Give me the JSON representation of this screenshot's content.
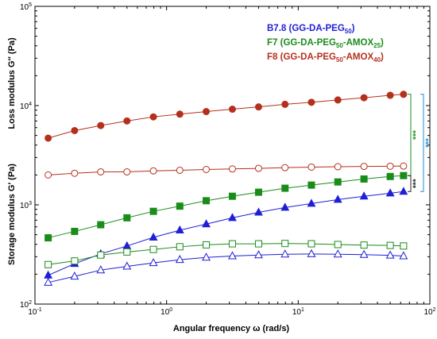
{
  "chart_data": {
    "type": "scatter",
    "title": "",
    "xlabel": "Angular frequency  ω  (rad/s)",
    "ylabel_top": "Loss modulus  G″  (Pa)",
    "ylabel_bottom": "Storage modulus  G′  (Pa)",
    "x_scale": "log",
    "y_scale": "log",
    "xlim": [
      0.1,
      100
    ],
    "ylim": [
      100,
      100000
    ],
    "x_ticks": [
      {
        "value": 0.1,
        "base": "10",
        "exp": "-1"
      },
      {
        "value": 1,
        "base": "10",
        "exp": "0"
      },
      {
        "value": 10,
        "base": "10",
        "exp": "1"
      },
      {
        "value": 100,
        "base": "10",
        "exp": "2"
      }
    ],
    "y_ticks": [
      {
        "value": 100,
        "base": "10",
        "exp": "2"
      },
      {
        "value": 1000,
        "base": "10",
        "exp": "3"
      },
      {
        "value": 10000,
        "base": "10",
        "exp": "4"
      },
      {
        "value": 100000,
        "base": "10",
        "exp": "5"
      }
    ],
    "x": [
      0.126,
      0.2,
      0.316,
      0.5,
      0.794,
      1.26,
      2.0,
      3.16,
      5.0,
      7.94,
      12.6,
      20.0,
      31.6,
      50.0,
      63.1
    ],
    "legend": [
      {
        "main": "B7.8 (GG-DA-PEG",
        "sub1": "50",
        "mid": "",
        "sub2": "",
        "tail": ")",
        "color": "#1f1fd6"
      },
      {
        "main": "F7  (GG-DA-PEG",
        "sub1": "50",
        "mid": "-AMOX",
        "sub2": "25",
        "tail": ")",
        "color": "#1a8c1a"
      },
      {
        "main": "F8  (GG-DA-PEG",
        "sub1": "50",
        "mid": "-AMOX",
        "sub2": "40",
        "tail": ")",
        "color": "#b5301c"
      }
    ],
    "series": [
      {
        "name": "B7.8 (GG-DA-PEG50)",
        "modulus": "G′",
        "marker": "triangle",
        "filled": true,
        "color": "#1f1fd6",
        "values": [
          195,
          255,
          320,
          385,
          470,
          555,
          640,
          740,
          840,
          940,
          1030,
          1130,
          1220,
          1310,
          1360
        ]
      },
      {
        "name": "B7.8 (GG-DA-PEG50)",
        "modulus": "G″",
        "marker": "triangle",
        "filled": false,
        "color": "#1f1fd6",
        "values": [
          165,
          190,
          220,
          240,
          260,
          280,
          295,
          305,
          312,
          318,
          320,
          318,
          315,
          310,
          305
        ]
      },
      {
        "name": "F7 (GG-DA-PEG50-AMOX25)",
        "modulus": "G′",
        "marker": "square",
        "filled": true,
        "color": "#1a8c1a",
        "values": [
          465,
          540,
          630,
          740,
          860,
          970,
          1100,
          1220,
          1340,
          1470,
          1580,
          1700,
          1820,
          1930,
          1970
        ]
      },
      {
        "name": "F7 (GG-DA-PEG50-AMOX25)",
        "modulus": "G″",
        "marker": "square",
        "filled": false,
        "color": "#1a8c1a",
        "values": [
          250,
          272,
          312,
          335,
          355,
          378,
          395,
          405,
          405,
          408,
          405,
          398,
          393,
          390,
          385
        ]
      },
      {
        "name": "F8 (GG-DA-PEG50-AMOX40)",
        "modulus": "G′",
        "marker": "circle",
        "filled": true,
        "color": "#b5301c",
        "values": [
          4700,
          5600,
          6300,
          7000,
          7700,
          8200,
          8700,
          9200,
          9700,
          10300,
          10800,
          11400,
          12000,
          12700,
          13000
        ]
      },
      {
        "name": "F8 (GG-DA-PEG50-AMOX40)",
        "modulus": "G″",
        "marker": "circle",
        "filled": false,
        "color": "#b5301c",
        "values": [
          2000,
          2080,
          2150,
          2150,
          2200,
          2230,
          2270,
          2300,
          2330,
          2370,
          2400,
          2420,
          2440,
          2450,
          2460
        ]
      }
    ],
    "significance": [
      {
        "label": "***",
        "color": "#1a8c1a",
        "from_series": 4,
        "to_series": 2
      },
      {
        "label": "***",
        "color": "#1f8fd6",
        "from_series": 4,
        "to_series": 0
      },
      {
        "label": "***",
        "color": "#222222",
        "from_series": 2,
        "to_series": 0
      }
    ]
  }
}
